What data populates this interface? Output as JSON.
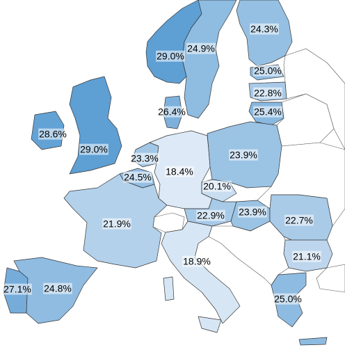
{
  "chart_data": {
    "type": "choropleth",
    "values": [
      29.0,
      24.9,
      24.3,
      25.0,
      22.8,
      25.4,
      26.4,
      28.6,
      29.0,
      23.3,
      18.4,
      23.9,
      24.5,
      20.1,
      21.9,
      22.9,
      23.9,
      22.7,
      21.1,
      18.9,
      27.1,
      24.8,
      25.0
    ],
    "value_labels": [
      "29.0%",
      "24.9%",
      "24.3%",
      "25.0%",
      "22.8%",
      "25.4%",
      "26.4%",
      "28.6%",
      "29.0%",
      "23.3%",
      "18.4%",
      "23.9%",
      "24.5%",
      "20.1%",
      "21.9%",
      "22.9%",
      "23.9%",
      "22.7%",
      "21.1%",
      "18.9%",
      "27.1%",
      "24.8%",
      "25.0%"
    ],
    "color_low": "#dde9f6",
    "color_high": "#5e9fd4"
  }
}
